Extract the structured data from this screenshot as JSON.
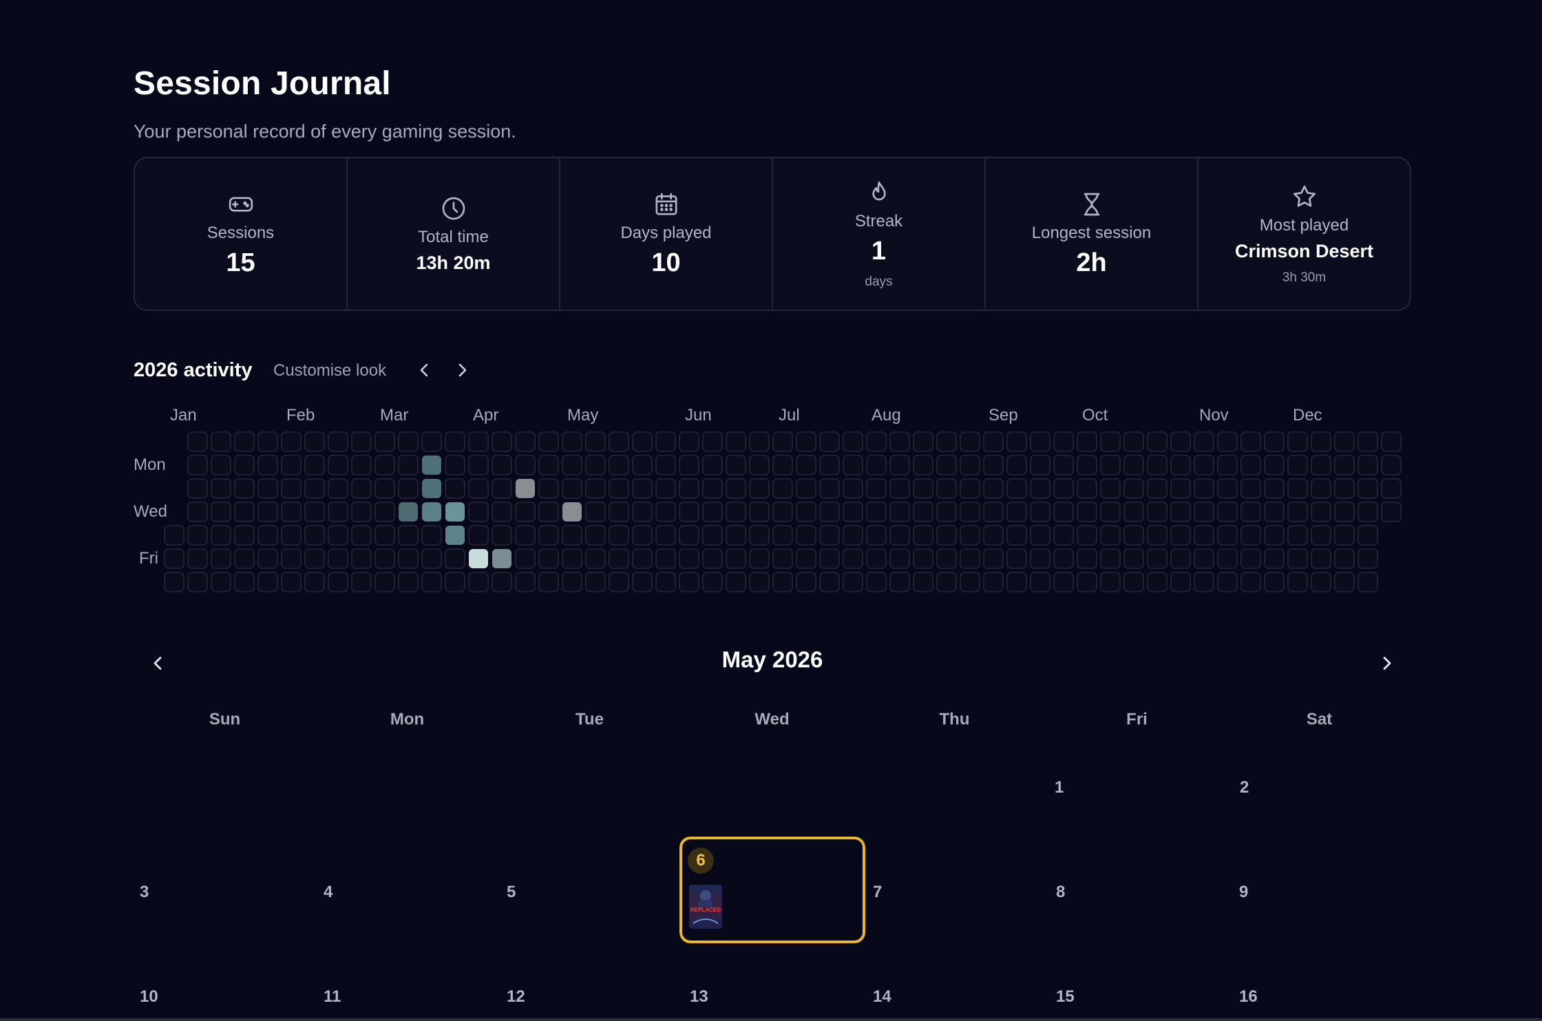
{
  "header": {
    "title": "Session Journal",
    "subtitle": "Your personal record of every gaming session."
  },
  "stats": [
    {
      "icon": "gamepad-icon",
      "label": "Sessions",
      "value": "15",
      "sub": ""
    },
    {
      "icon": "clock-icon",
      "label": "Total time",
      "value": "13h 20m",
      "sub": ""
    },
    {
      "icon": "calendar-icon",
      "label": "Days played",
      "value": "10",
      "sub": ""
    },
    {
      "icon": "flame-icon",
      "label": "Streak",
      "value": "1",
      "sub": "days"
    },
    {
      "icon": "hourglass-icon",
      "label": "Longest session",
      "value": "2h",
      "sub": ""
    },
    {
      "icon": "star-icon",
      "label": "Most played",
      "value": "Crimson Desert",
      "sub": "3h 30m"
    }
  ],
  "activity": {
    "title": "2026 activity",
    "customise_label": "Customise look",
    "months": [
      "Jan",
      "Feb",
      "Mar",
      "Apr",
      "May",
      "Jun",
      "Jul",
      "Aug",
      "Sep",
      "Oct",
      "Nov",
      "Dec"
    ],
    "day_labels": [
      "Mon",
      "Wed",
      "Fri"
    ],
    "active_cells": [
      {
        "week": 11,
        "day": 1,
        "color": "#4f7078"
      },
      {
        "week": 11,
        "day": 2,
        "color": "#4f7078"
      },
      {
        "week": 10,
        "day": 3,
        "color": "#4f6b72"
      },
      {
        "week": 11,
        "day": 3,
        "color": "#5b8088"
      },
      {
        "week": 12,
        "day": 3,
        "color": "#6b9499"
      },
      {
        "week": 12,
        "day": 4,
        "color": "#5e8489"
      },
      {
        "week": 13,
        "day": 5,
        "color": "#c8dcdc"
      },
      {
        "week": 14,
        "day": 5,
        "color": "#7c8e93"
      },
      {
        "week": 15,
        "day": 2,
        "color": "#8a8d92"
      },
      {
        "week": 17,
        "day": 3,
        "color": "#8a8d92"
      }
    ]
  },
  "calendar": {
    "title": "May 2026",
    "weekdays": [
      "Sun",
      "Mon",
      "Tue",
      "Wed",
      "Thu",
      "Fri",
      "Sat"
    ],
    "days": [
      "1",
      "2",
      "3",
      "4",
      "5",
      "6",
      "7",
      "8",
      "9",
      "10",
      "11",
      "12",
      "13",
      "14",
      "15",
      "16"
    ],
    "today": "6",
    "thumb_text": "REPLACED"
  },
  "colors": {
    "accent": "#e9b82c",
    "background": "#07081a"
  }
}
